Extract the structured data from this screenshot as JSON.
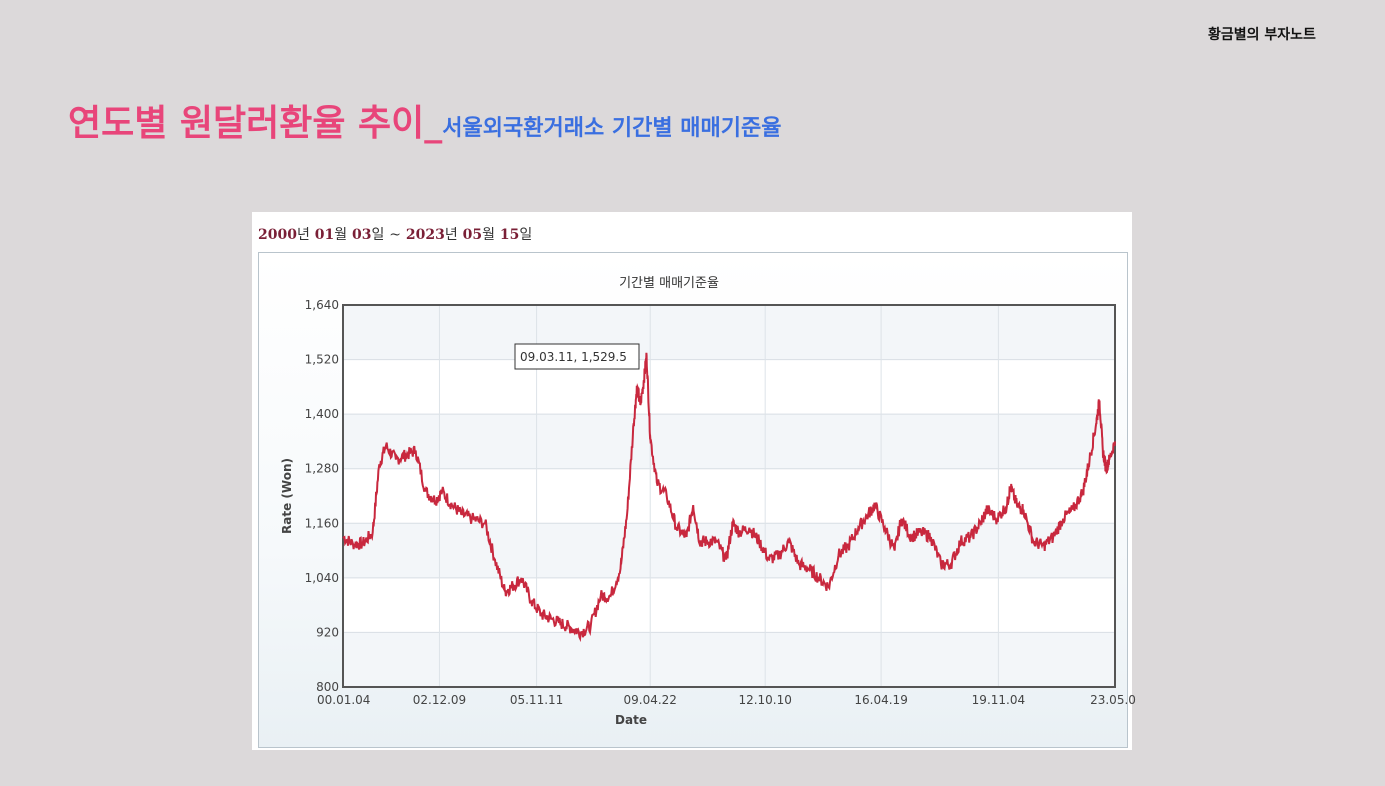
{
  "brand": "황금별의 부자노트",
  "title": {
    "main": "연도별 원달러환율 추이",
    "separator": "_",
    "sub": "서울외국환거래소 기간별 매매기준율"
  },
  "date_range": {
    "start_year": "2000",
    "start_year_unit": "년",
    "start_month": "01",
    "start_month_unit": "월",
    "start_day": "03",
    "start_day_unit": "일",
    "tilde": "~",
    "end_year": "2023",
    "end_year_unit": "년",
    "end_month": "05",
    "end_month_unit": "월",
    "end_day": "15",
    "end_day_unit": "일"
  },
  "colors": {
    "line": "#c8283e",
    "title_pink": "#e8457a",
    "subtitle_blue": "#3a6fe0"
  },
  "chart_data": {
    "type": "line",
    "title": "기간별 매매기준율",
    "xlabel": "Date",
    "ylabel": "Rate (Won)",
    "ylim": [
      800,
      1640
    ],
    "yticks": [
      800,
      920,
      1040,
      1160,
      1280,
      1400,
      1520,
      1640
    ],
    "ytick_labels": [
      "800",
      "920",
      "1,040",
      "1,160",
      "1,280",
      "1,400",
      "1,520",
      "1,640"
    ],
    "xlim": [
      2000.0,
      2023.37
    ],
    "xticks": [
      2000.0,
      2002.92,
      2005.86,
      2009.3,
      2012.78,
      2016.29,
      2019.84,
      2023.37
    ],
    "xtick_labels": [
      "00.01.04",
      "02.12.09",
      "05.11.11",
      "09.04.22",
      "12.10.10",
      "16.04.19",
      "19.11.04",
      "23.05.0"
    ],
    "grid": true,
    "tooltip": "09.03.11, 1,529.5",
    "series": [
      {
        "x": [
          2000.0,
          2000.3,
          2000.6,
          2000.9,
          2001.1,
          2001.3,
          2001.6,
          2001.9,
          2002.2,
          2002.5,
          2002.8,
          2003.0,
          2003.3,
          2003.6,
          2003.9,
          2004.3,
          2004.6,
          2004.9,
          2005.1,
          2005.4,
          2005.7,
          2006.0,
          2006.3,
          2006.6,
          2006.9,
          2007.2,
          2007.5,
          2007.8,
          2008.1,
          2008.4,
          2008.6,
          2008.8,
          2008.9,
          2009.0,
          2009.1,
          2009.19,
          2009.3,
          2009.5,
          2009.8,
          2010.1,
          2010.4,
          2010.6,
          2010.8,
          2011.0,
          2011.3,
          2011.6,
          2011.8,
          2012.0,
          2012.3,
          2012.6,
          2012.9,
          2013.2,
          2013.5,
          2013.8,
          2014.1,
          2014.4,
          2014.7,
          2015.0,
          2015.3,
          2015.6,
          2015.9,
          2016.1,
          2016.4,
          2016.7,
          2016.9,
          2017.2,
          2017.5,
          2017.8,
          2018.1,
          2018.4,
          2018.7,
          2019.0,
          2019.3,
          2019.5,
          2019.8,
          2020.1,
          2020.2,
          2020.4,
          2020.6,
          2020.9,
          2021.2,
          2021.5,
          2021.8,
          2022.1,
          2022.4,
          2022.6,
          2022.8,
          2022.9,
          2023.0,
          2023.1,
          2023.2,
          2023.37
        ],
        "values": [
          1130,
          1115,
          1115,
          1140,
          1290,
          1330,
          1300,
          1310,
          1320,
          1230,
          1210,
          1230,
          1200,
          1180,
          1170,
          1160,
          1080,
          1010,
          1020,
          1040,
          990,
          960,
          950,
          940,
          930,
          920,
          935,
          1000,
          1000,
          1060,
          1180,
          1380,
          1460,
          1420,
          1470,
          1529.5,
          1350,
          1250,
          1220,
          1150,
          1130,
          1200,
          1120,
          1120,
          1120,
          1080,
          1160,
          1140,
          1150,
          1120,
          1080,
          1090,
          1120,
          1070,
          1060,
          1040,
          1020,
          1090,
          1110,
          1150,
          1180,
          1200,
          1150,
          1100,
          1170,
          1130,
          1140,
          1130,
          1070,
          1070,
          1120,
          1130,
          1160,
          1190,
          1170,
          1200,
          1240,
          1200,
          1190,
          1120,
          1110,
          1130,
          1170,
          1190,
          1230,
          1300,
          1380,
          1430,
          1320,
          1280,
          1300,
          1340
        ]
      }
    ]
  }
}
